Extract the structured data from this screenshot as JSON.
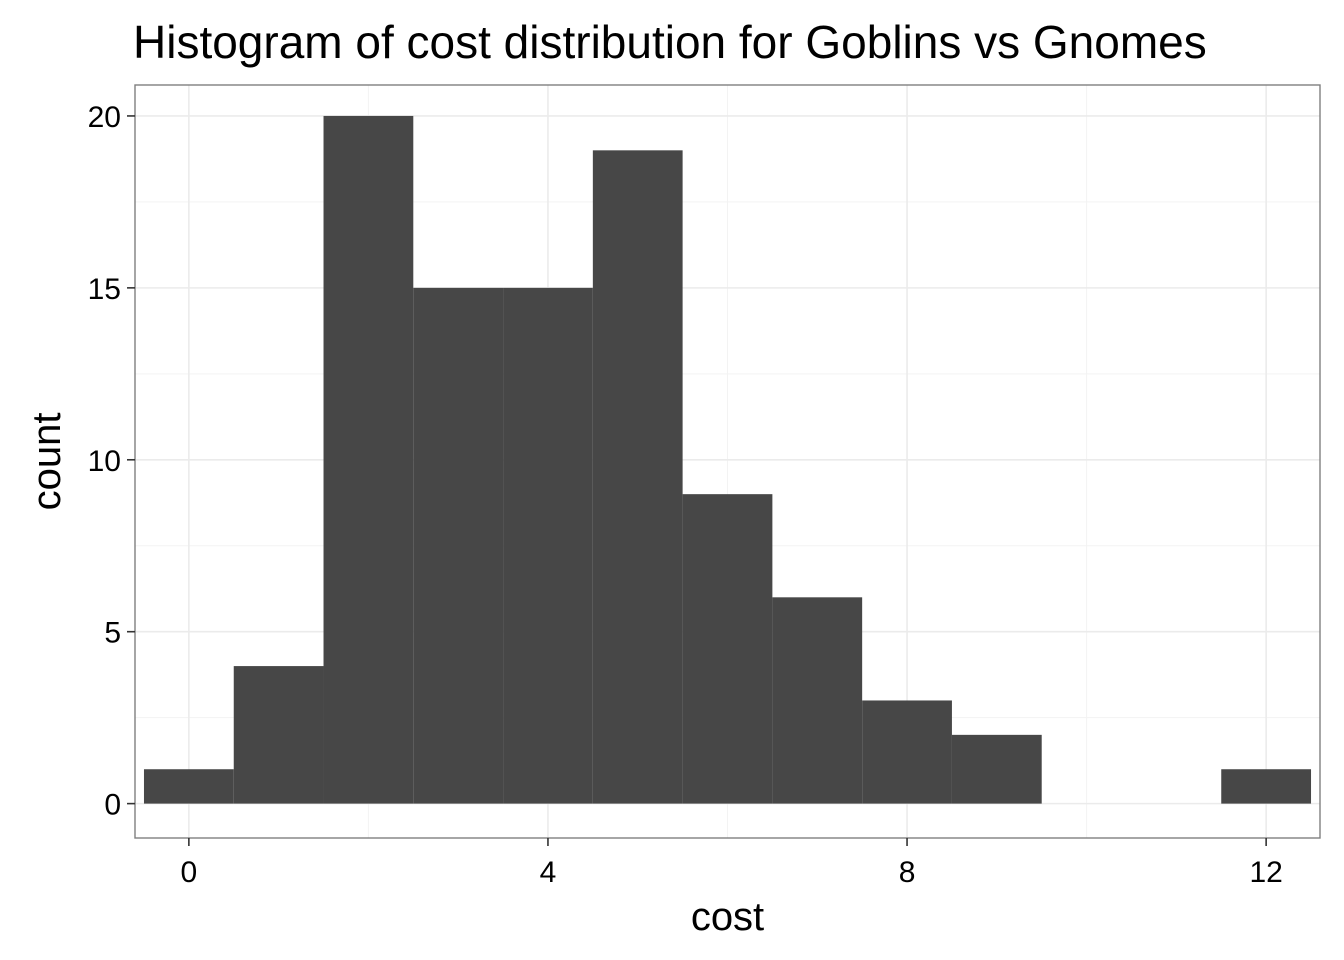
{
  "chart_data": {
    "type": "bar",
    "subtype": "histogram",
    "title": "Histogram of cost distribution for Goblins vs Gnomes",
    "xlabel": "cost",
    "ylabel": "count",
    "bin_width": 1,
    "bins": [
      {
        "x": 0,
        "count": 1
      },
      {
        "x": 1,
        "count": 4
      },
      {
        "x": 2,
        "count": 20
      },
      {
        "x": 3,
        "count": 15
      },
      {
        "x": 4,
        "count": 15
      },
      {
        "x": 5,
        "count": 19
      },
      {
        "x": 6,
        "count": 9
      },
      {
        "x": 7,
        "count": 6
      },
      {
        "x": 8,
        "count": 3
      },
      {
        "x": 9,
        "count": 2
      },
      {
        "x": 12,
        "count": 1
      }
    ],
    "xlim": [
      -0.6,
      12.6
    ],
    "ylim": [
      -1,
      20.9
    ],
    "x_ticks": [
      0,
      4,
      8,
      12
    ],
    "x_tick_labels": [
      "0",
      "4",
      "8",
      "12"
    ],
    "y_ticks": [
      0,
      5,
      10,
      15,
      20
    ],
    "y_tick_labels": [
      "0",
      "5",
      "10",
      "15",
      "20"
    ],
    "grid": true,
    "bar_color": "#474747",
    "background_color": "#ffffff",
    "grid_color": "#ebebeb"
  }
}
